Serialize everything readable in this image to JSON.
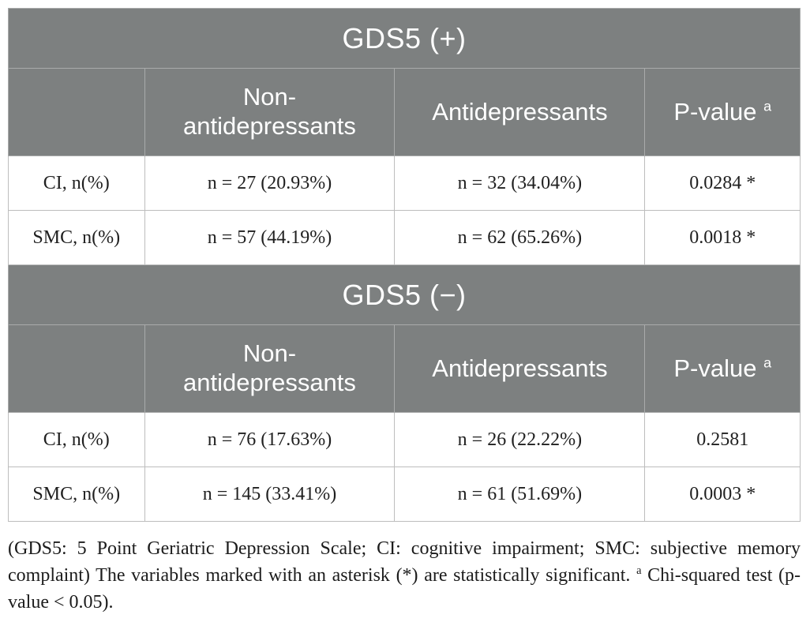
{
  "colors": {
    "header_bg": "#7d8080",
    "header_text": "#ffffff",
    "cell_border": "#bdbdbd",
    "body_text": "#1f1f1f"
  },
  "table": {
    "sections": [
      {
        "title": "GDS5 (+)",
        "columns": [
          "",
          "Non-antidepressants",
          "Antidepressants",
          "P-value"
        ],
        "p_sup": "a",
        "rows": [
          {
            "cells": [
              "CI, n(%)",
              "n = 27 (20.93%)",
              "n = 32 (34.04%)",
              "0.0284 *"
            ]
          },
          {
            "cells": [
              "SMC, n(%)",
              "n = 57 (44.19%)",
              "n = 62 (65.26%)",
              "0.0018 *"
            ]
          }
        ]
      },
      {
        "title": "GDS5 (−)",
        "columns": [
          "",
          "Non-antidepressants",
          "Antidepressants",
          "P-value"
        ],
        "p_sup": "a",
        "rows": [
          {
            "cells": [
              "CI, n(%)",
              "n = 76 (17.63%)",
              "n = 26 (22.22%)",
              "0.2581"
            ]
          },
          {
            "cells": [
              "SMC, n(%)",
              "n = 145 (33.41%)",
              "n = 61 (51.69%)",
              "0.0003 *"
            ]
          }
        ]
      }
    ]
  },
  "footnote": {
    "text_main": "(GDS5: 5 Point Geriatric Depression Scale; CI: cognitive impairment; SMC: subjective memory complaint) The variables marked with an asterisk (*) are statistically significant.",
    "sup_marker": "a",
    "text_sup": "Chi-squared test (p-value < 0.05)."
  }
}
